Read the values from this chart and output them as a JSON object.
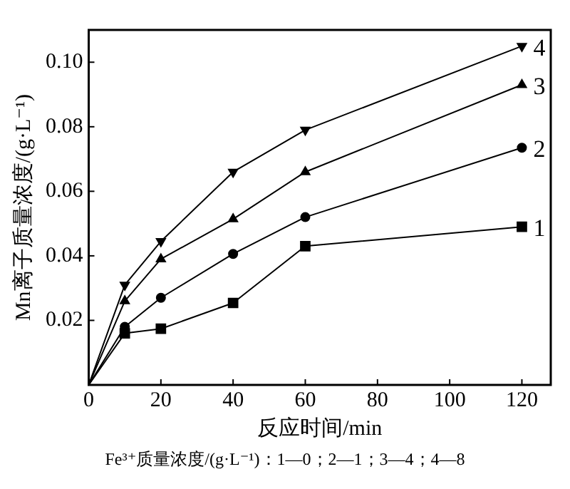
{
  "chart_data": {
    "type": "line",
    "xlabel": "反应时间/min",
    "ylabel": "Mn离子质量浓度/(g·L⁻¹)",
    "x": [
      0,
      10,
      20,
      40,
      60,
      120
    ],
    "xlim": [
      0,
      128
    ],
    "xticks": [
      0,
      20,
      40,
      60,
      80,
      100,
      120
    ],
    "ylim": [
      0,
      0.11
    ],
    "yticks": [
      0.02,
      0.04,
      0.06,
      0.08,
      {
        "value": 0.1,
        "label": "0.10"
      }
    ],
    "grid": false,
    "legend": false,
    "line_style": "solid",
    "series": [
      {
        "name": "1",
        "color": "#000000",
        "marker": "square",
        "values": [
          0,
          0.016,
          0.0174,
          0.0254,
          0.043,
          0.049
        ]
      },
      {
        "name": "2",
        "color": "#000000",
        "marker": "circle",
        "values": [
          0,
          0.018,
          0.027,
          0.0406,
          0.052,
          0.0735
        ]
      },
      {
        "name": "3",
        "color": "#000000",
        "marker": "triangle",
        "values": [
          0,
          0.026,
          0.039,
          0.0514,
          0.066,
          0.093
        ]
      },
      {
        "name": "4",
        "color": "#000000",
        "marker": "triangle-down",
        "values": [
          0,
          0.031,
          0.0445,
          0.066,
          0.079,
          0.105
        ]
      }
    ],
    "annotations": [
      "Fe³⁺质量浓度/(g·L⁻¹)：1—0；2—1；3—4；4—8"
    ]
  }
}
